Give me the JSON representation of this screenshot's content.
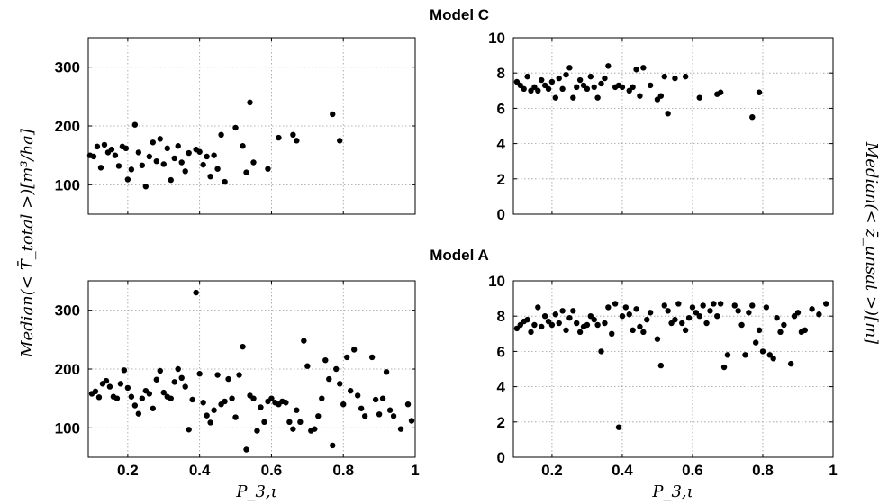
{
  "figure": {
    "section_titles": [
      "Model C",
      "Model A"
    ],
    "left_ylabel": "Median(< T̄_total >)[m³/ha]",
    "right_ylabel": "Median(< z̄_unsat >)[m]",
    "xlabel": "P_3,ι"
  },
  "chart_data": [
    {
      "id": "modelC-volume",
      "type": "scatter",
      "section": "Model C",
      "xlim": [
        0.09,
        1.0
      ],
      "ylim": [
        50,
        350
      ],
      "xticks": [
        0.2,
        0.4,
        0.6,
        0.8,
        1
      ],
      "xticklabels": [
        "",
        "",
        "",
        "",
        ""
      ],
      "yticks": [
        100,
        200,
        300
      ],
      "yticklabels": [
        "100",
        "200",
        "300"
      ],
      "grid": true,
      "x": [
        0.095,
        0.105,
        0.115,
        0.125,
        0.135,
        0.145,
        0.155,
        0.165,
        0.175,
        0.185,
        0.195,
        0.2,
        0.21,
        0.22,
        0.23,
        0.24,
        0.25,
        0.26,
        0.27,
        0.28,
        0.29,
        0.3,
        0.31,
        0.32,
        0.33,
        0.34,
        0.35,
        0.36,
        0.37,
        0.39,
        0.4,
        0.41,
        0.42,
        0.43,
        0.44,
        0.45,
        0.46,
        0.47,
        0.5,
        0.52,
        0.53,
        0.54,
        0.55,
        0.59,
        0.62,
        0.66,
        0.67,
        0.77,
        0.79
      ],
      "y": [
        150,
        148,
        165,
        129,
        168,
        155,
        160,
        150,
        132,
        165,
        162,
        109,
        126,
        202,
        155,
        133,
        97,
        148,
        172,
        140,
        178,
        135,
        162,
        108,
        145,
        166,
        138,
        123,
        154,
        160,
        156,
        134,
        148,
        114,
        150,
        127,
        185,
        105,
        197,
        166,
        121,
        240,
        138,
        127,
        180,
        185,
        175,
        220,
        175
      ]
    },
    {
      "id": "modelC-depth",
      "type": "scatter",
      "section": "Model C",
      "xlim": [
        0.09,
        1.0
      ],
      "ylim": [
        0,
        10
      ],
      "xticks": [
        0.2,
        0.4,
        0.6,
        0.8,
        1
      ],
      "xticklabels": [
        "",
        "",
        "",
        "",
        ""
      ],
      "yticks": [
        0,
        2,
        4,
        6,
        8,
        10
      ],
      "yticklabels": [
        "0",
        "2",
        "4",
        "6",
        "8",
        "10"
      ],
      "grid": true,
      "x": [
        0.1,
        0.11,
        0.12,
        0.13,
        0.14,
        0.15,
        0.16,
        0.17,
        0.18,
        0.19,
        0.2,
        0.21,
        0.22,
        0.23,
        0.24,
        0.25,
        0.26,
        0.27,
        0.28,
        0.29,
        0.3,
        0.31,
        0.32,
        0.33,
        0.34,
        0.35,
        0.36,
        0.38,
        0.39,
        0.4,
        0.42,
        0.43,
        0.44,
        0.45,
        0.46,
        0.48,
        0.5,
        0.51,
        0.52,
        0.53,
        0.55,
        0.58,
        0.62,
        0.67,
        0.68,
        0.77,
        0.79
      ],
      "y": [
        7.5,
        7.3,
        7.1,
        7.8,
        7.0,
        7.2,
        7.0,
        7.6,
        7.3,
        7.1,
        7.5,
        6.6,
        7.7,
        7.1,
        7.9,
        8.3,
        6.6,
        7.2,
        7.6,
        7.3,
        7.1,
        7.8,
        7.2,
        6.6,
        7.4,
        7.7,
        8.4,
        7.2,
        7.3,
        7.2,
        7.0,
        7.2,
        8.2,
        6.7,
        8.3,
        7.3,
        6.5,
        6.7,
        7.8,
        5.7,
        7.7,
        7.8,
        6.6,
        6.8,
        6.9,
        5.5,
        6.9
      ]
    },
    {
      "id": "modelA-volume",
      "type": "scatter",
      "section": "Model A",
      "xlim": [
        0.09,
        1.0
      ],
      "ylim": [
        50,
        350
      ],
      "xticks": [
        0.2,
        0.4,
        0.6,
        0.8,
        1
      ],
      "xticklabels": [
        "0.2",
        "0.4",
        "0.6",
        "0.8",
        "1"
      ],
      "yticks": [
        100,
        200,
        300
      ],
      "yticklabels": [
        "100",
        "200",
        "300"
      ],
      "grid": true,
      "x": [
        0.1,
        0.11,
        0.12,
        0.13,
        0.14,
        0.15,
        0.16,
        0.17,
        0.18,
        0.19,
        0.2,
        0.21,
        0.22,
        0.23,
        0.24,
        0.25,
        0.26,
        0.27,
        0.28,
        0.29,
        0.3,
        0.31,
        0.32,
        0.33,
        0.34,
        0.35,
        0.36,
        0.37,
        0.38,
        0.39,
        0.4,
        0.41,
        0.42,
        0.43,
        0.44,
        0.45,
        0.46,
        0.47,
        0.48,
        0.49,
        0.5,
        0.51,
        0.52,
        0.53,
        0.54,
        0.55,
        0.56,
        0.57,
        0.58,
        0.59,
        0.6,
        0.61,
        0.62,
        0.63,
        0.64,
        0.65,
        0.66,
        0.67,
        0.68,
        0.69,
        0.7,
        0.71,
        0.72,
        0.73,
        0.74,
        0.75,
        0.76,
        0.77,
        0.78,
        0.79,
        0.8,
        0.81,
        0.82,
        0.83,
        0.84,
        0.85,
        0.86,
        0.88,
        0.89,
        0.9,
        0.91,
        0.92,
        0.93,
        0.94,
        0.96,
        0.98,
        0.99
      ],
      "y": [
        158,
        162,
        152,
        175,
        180,
        170,
        153,
        150,
        175,
        198,
        168,
        153,
        138,
        124,
        150,
        163,
        158,
        133,
        182,
        197,
        160,
        153,
        150,
        178,
        200,
        185,
        170,
        97,
        148,
        330,
        192,
        143,
        121,
        109,
        130,
        190,
        140,
        145,
        183,
        150,
        118,
        190,
        238,
        63,
        155,
        150,
        95,
        135,
        110,
        145,
        150,
        143,
        140,
        145,
        143,
        110,
        98,
        130,
        110,
        248,
        205,
        95,
        98,
        120,
        150,
        215,
        183,
        70,
        200,
        175,
        140,
        220,
        163,
        233,
        155,
        133,
        120,
        220,
        148,
        123,
        150,
        195,
        130,
        120,
        98,
        140,
        112
      ]
    },
    {
      "id": "modelA-depth",
      "type": "scatter",
      "section": "Model A",
      "xlim": [
        0.09,
        1.0
      ],
      "ylim": [
        0,
        10
      ],
      "xticks": [
        0.2,
        0.4,
        0.6,
        0.8,
        1
      ],
      "xticklabels": [
        "0.2",
        "0.4",
        "0.6",
        "0.8",
        "1"
      ],
      "yticks": [
        0,
        2,
        4,
        6,
        8,
        10
      ],
      "yticklabels": [
        "0",
        "2",
        "4",
        "6",
        "8",
        "10"
      ],
      "grid": true,
      "x": [
        0.1,
        0.11,
        0.12,
        0.13,
        0.14,
        0.15,
        0.16,
        0.17,
        0.18,
        0.19,
        0.2,
        0.21,
        0.22,
        0.23,
        0.24,
        0.25,
        0.26,
        0.27,
        0.28,
        0.29,
        0.3,
        0.31,
        0.32,
        0.33,
        0.34,
        0.35,
        0.36,
        0.37,
        0.38,
        0.39,
        0.4,
        0.41,
        0.42,
        0.43,
        0.44,
        0.45,
        0.46,
        0.47,
        0.48,
        0.5,
        0.51,
        0.52,
        0.53,
        0.54,
        0.55,
        0.56,
        0.57,
        0.58,
        0.59,
        0.6,
        0.61,
        0.62,
        0.63,
        0.64,
        0.65,
        0.66,
        0.67,
        0.68,
        0.69,
        0.7,
        0.72,
        0.73,
        0.74,
        0.75,
        0.76,
        0.77,
        0.78,
        0.79,
        0.8,
        0.81,
        0.82,
        0.83,
        0.84,
        0.85,
        0.86,
        0.88,
        0.89,
        0.9,
        0.91,
        0.92,
        0.94,
        0.96,
        0.98
      ],
      "y": [
        7.3,
        7.5,
        7.7,
        7.8,
        7.1,
        7.5,
        8.5,
        7.4,
        8.0,
        7.7,
        7.5,
        8.1,
        7.6,
        8.3,
        7.2,
        7.9,
        8.3,
        7.6,
        7.1,
        7.4,
        7.5,
        8.0,
        7.8,
        7.5,
        6.0,
        7.6,
        8.5,
        7.0,
        8.7,
        1.7,
        8.0,
        8.5,
        8.1,
        7.2,
        8.4,
        7.4,
        7.1,
        7.8,
        8.2,
        6.7,
        5.2,
        8.6,
        8.3,
        7.6,
        7.8,
        8.7,
        7.6,
        7.2,
        7.9,
        8.5,
        8.2,
        8.0,
        8.6,
        7.6,
        8.3,
        8.7,
        8.0,
        8.7,
        5.1,
        5.8,
        8.6,
        8.3,
        7.5,
        5.8,
        8.2,
        8.6,
        6.5,
        7.2,
        6.0,
        8.5,
        5.8,
        5.6,
        7.9,
        7.1,
        7.5,
        5.3,
        8.0,
        8.2,
        7.1,
        7.2,
        8.4,
        8.1,
        8.7
      ]
    }
  ]
}
